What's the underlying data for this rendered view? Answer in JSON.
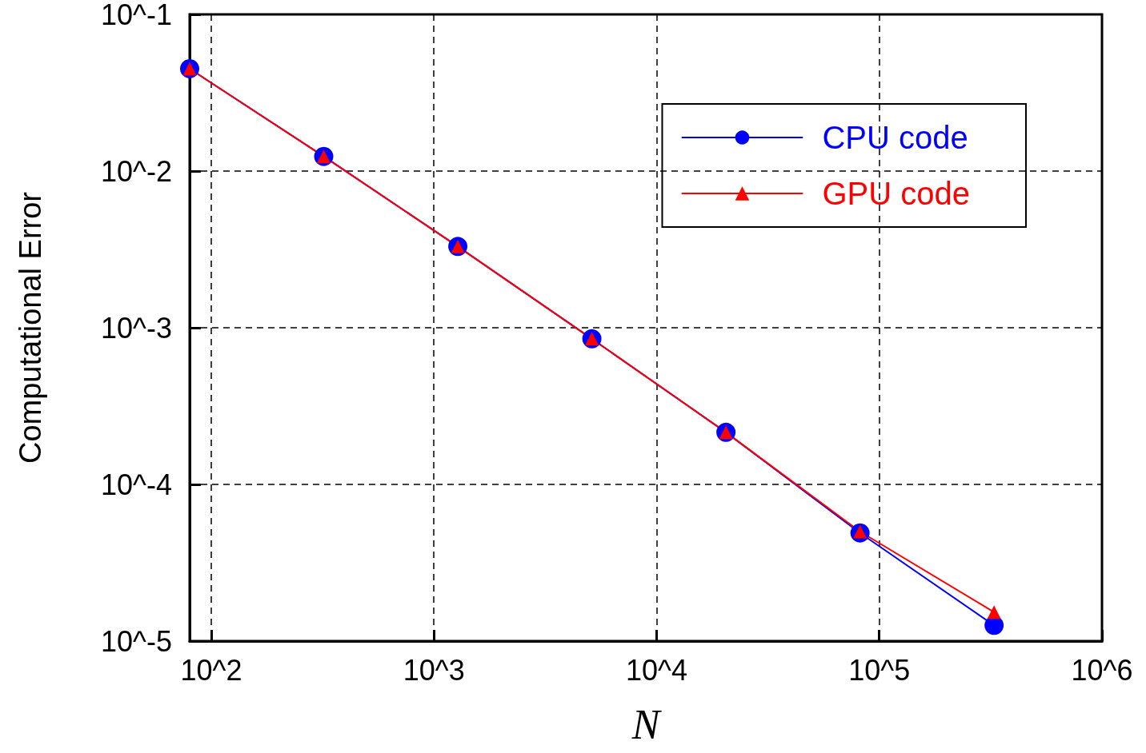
{
  "chart_data": {
    "type": "line",
    "xlabel": "N",
    "ylabel": "Computational Error",
    "x": [
      80,
      320,
      1280,
      5120,
      20480,
      81920,
      327680
    ],
    "series": [
      {
        "name": "CPU code",
        "color": "#0000ff",
        "marker": "circle",
        "values": [
          0.045,
          0.0124,
          0.0033,
          0.00085,
          0.000215,
          4.9e-05,
          1.26e-05
        ]
      },
      {
        "name": "GPU code",
        "color": "#ff0000",
        "marker": "triangle",
        "values": [
          0.045,
          0.0124,
          0.0033,
          0.00085,
          0.000215,
          5e-05,
          1.53e-05
        ]
      }
    ],
    "log": "xy",
    "xlim": [
      80,
      1000000
    ],
    "ylim": [
      1e-05,
      0.1
    ],
    "xticks": [
      {
        "value": 100,
        "label": "10^2"
      },
      {
        "value": 1000,
        "label": "10^3"
      },
      {
        "value": 10000,
        "label": "10^4"
      },
      {
        "value": 100000,
        "label": "10^5"
      },
      {
        "value": 1000000,
        "label": "10^6"
      }
    ],
    "yticks": [
      {
        "value": 1e-05,
        "label": "10^-5"
      },
      {
        "value": 0.0001,
        "label": "10^-4"
      },
      {
        "value": 0.001,
        "label": "10^-3"
      },
      {
        "value": 0.01,
        "label": "10^-2"
      },
      {
        "value": 0.1,
        "label": "10^-1"
      }
    ],
    "grid": true,
    "legend": "top right",
    "line_style": "solid"
  }
}
